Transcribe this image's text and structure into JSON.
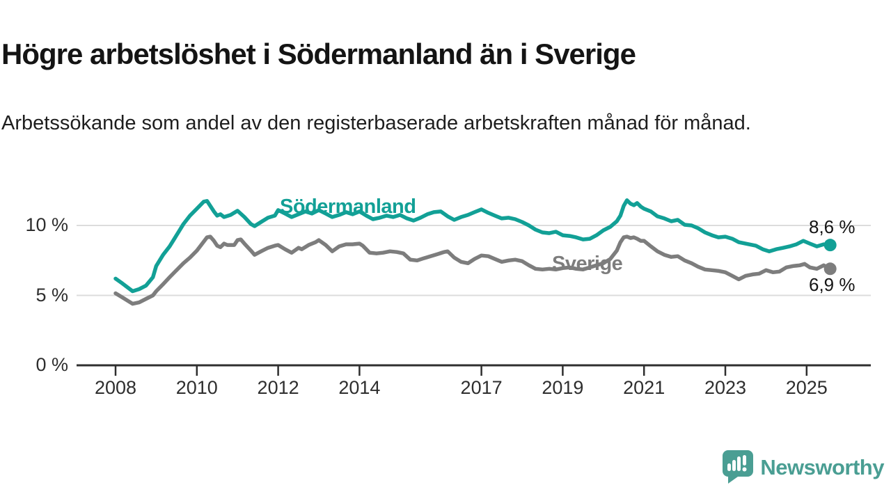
{
  "header": {
    "title": "Högre arbetslöshet i Södermanland än i Sverige",
    "subtitle": "Arbetssökande som andel av den registerbaserade arbetskraften månad för månad."
  },
  "branding": {
    "logo_text": "Newsworthy",
    "logo_color": "#4a9e93"
  },
  "colors": {
    "teal_line": "#12a096",
    "gray_line": "#7d7d7d",
    "gridline": "#dcdcdc",
    "axis": "#2e2e2e",
    "text": "#2e2e2e"
  },
  "chart_data": {
    "type": "line",
    "title": "Högre arbetslöshet i Södermanland än i Sverige",
    "subtitle": "Arbetssökande som andel av den registerbaserade arbetskraften månad för månad.",
    "xlabel": "",
    "ylabel": "",
    "grid": "horizontal",
    "legend_position": "inline-labels",
    "x_axis": {
      "unit": "year",
      "range": [
        2007.9,
        2026.5
      ],
      "ticks": [
        2008,
        2010,
        2012,
        2014,
        2017,
        2019,
        2021,
        2023,
        2025
      ]
    },
    "y_axis": {
      "unit": "percent",
      "range": [
        0,
        12.5
      ],
      "ticks": [
        0,
        5,
        10
      ],
      "tick_labels": [
        "0 %",
        "5 %",
        "10 %"
      ]
    },
    "series": [
      {
        "name": "Sverige",
        "color": "#7d7d7d",
        "end_label": "6,9 %",
        "end_value": 6.9,
        "points": [
          [
            2008.0,
            5.15
          ],
          [
            2008.17,
            4.85
          ],
          [
            2008.42,
            4.4
          ],
          [
            2008.58,
            4.5
          ],
          [
            2008.75,
            4.75
          ],
          [
            2008.92,
            5.0
          ],
          [
            2009.0,
            5.3
          ],
          [
            2009.17,
            5.8
          ],
          [
            2009.33,
            6.3
          ],
          [
            2009.5,
            6.8
          ],
          [
            2009.67,
            7.3
          ],
          [
            2009.83,
            7.7
          ],
          [
            2010.0,
            8.2
          ],
          [
            2010.08,
            8.5
          ],
          [
            2010.25,
            9.15
          ],
          [
            2010.33,
            9.2
          ],
          [
            2010.42,
            8.9
          ],
          [
            2010.5,
            8.55
          ],
          [
            2010.58,
            8.45
          ],
          [
            2010.67,
            8.7
          ],
          [
            2010.75,
            8.6
          ],
          [
            2010.92,
            8.6
          ],
          [
            2011.0,
            8.95
          ],
          [
            2011.08,
            9.0
          ],
          [
            2011.17,
            8.7
          ],
          [
            2011.33,
            8.2
          ],
          [
            2011.42,
            7.9
          ],
          [
            2011.58,
            8.15
          ],
          [
            2011.75,
            8.4
          ],
          [
            2011.92,
            8.55
          ],
          [
            2012.0,
            8.6
          ],
          [
            2012.17,
            8.3
          ],
          [
            2012.33,
            8.05
          ],
          [
            2012.5,
            8.4
          ],
          [
            2012.58,
            8.3
          ],
          [
            2012.75,
            8.6
          ],
          [
            2012.92,
            8.8
          ],
          [
            2013.0,
            8.95
          ],
          [
            2013.17,
            8.6
          ],
          [
            2013.33,
            8.15
          ],
          [
            2013.5,
            8.5
          ],
          [
            2013.67,
            8.65
          ],
          [
            2013.83,
            8.65
          ],
          [
            2014.0,
            8.7
          ],
          [
            2014.08,
            8.55
          ],
          [
            2014.25,
            8.05
          ],
          [
            2014.42,
            8.0
          ],
          [
            2014.58,
            8.05
          ],
          [
            2014.75,
            8.15
          ],
          [
            2014.92,
            8.1
          ],
          [
            2015.08,
            8.0
          ],
          [
            2015.25,
            7.55
          ],
          [
            2015.42,
            7.5
          ],
          [
            2015.58,
            7.65
          ],
          [
            2015.75,
            7.8
          ],
          [
            2015.92,
            7.95
          ],
          [
            2016.08,
            8.1
          ],
          [
            2016.17,
            8.15
          ],
          [
            2016.33,
            7.7
          ],
          [
            2016.5,
            7.4
          ],
          [
            2016.67,
            7.3
          ],
          [
            2016.83,
            7.6
          ],
          [
            2017.0,
            7.85
          ],
          [
            2017.17,
            7.8
          ],
          [
            2017.33,
            7.6
          ],
          [
            2017.5,
            7.4
          ],
          [
            2017.67,
            7.5
          ],
          [
            2017.83,
            7.55
          ],
          [
            2018.0,
            7.45
          ],
          [
            2018.17,
            7.15
          ],
          [
            2018.33,
            6.9
          ],
          [
            2018.5,
            6.85
          ],
          [
            2018.67,
            6.9
          ],
          [
            2018.83,
            6.85
          ],
          [
            2019.0,
            6.95
          ],
          [
            2019.17,
            7.0
          ],
          [
            2019.33,
            6.9
          ],
          [
            2019.5,
            6.85
          ],
          [
            2019.67,
            7.0
          ],
          [
            2019.83,
            7.15
          ],
          [
            2020.0,
            7.3
          ],
          [
            2020.17,
            7.6
          ],
          [
            2020.33,
            8.2
          ],
          [
            2020.42,
            8.8
          ],
          [
            2020.5,
            9.15
          ],
          [
            2020.58,
            9.2
          ],
          [
            2020.67,
            9.1
          ],
          [
            2020.75,
            9.15
          ],
          [
            2020.83,
            9.05
          ],
          [
            2020.92,
            8.9
          ],
          [
            2021.0,
            8.9
          ],
          [
            2021.17,
            8.5
          ],
          [
            2021.33,
            8.15
          ],
          [
            2021.5,
            7.9
          ],
          [
            2021.67,
            7.75
          ],
          [
            2021.83,
            7.8
          ],
          [
            2022.0,
            7.5
          ],
          [
            2022.17,
            7.3
          ],
          [
            2022.33,
            7.05
          ],
          [
            2022.5,
            6.85
          ],
          [
            2022.67,
            6.8
          ],
          [
            2022.83,
            6.75
          ],
          [
            2023.0,
            6.65
          ],
          [
            2023.17,
            6.4
          ],
          [
            2023.33,
            6.15
          ],
          [
            2023.5,
            6.4
          ],
          [
            2023.67,
            6.5
          ],
          [
            2023.83,
            6.55
          ],
          [
            2024.0,
            6.8
          ],
          [
            2024.17,
            6.65
          ],
          [
            2024.33,
            6.7
          ],
          [
            2024.5,
            7.0
          ],
          [
            2024.67,
            7.1
          ],
          [
            2024.83,
            7.15
          ],
          [
            2024.95,
            7.25
          ],
          [
            2025.08,
            7.0
          ],
          [
            2025.25,
            6.9
          ],
          [
            2025.42,
            7.15
          ],
          [
            2025.58,
            6.9
          ]
        ]
      },
      {
        "name": "Södermanland",
        "color": "#12a096",
        "end_label": "8,6 %",
        "end_value": 8.6,
        "points": [
          [
            2008.0,
            6.2
          ],
          [
            2008.17,
            5.85
          ],
          [
            2008.42,
            5.3
          ],
          [
            2008.58,
            5.45
          ],
          [
            2008.75,
            5.7
          ],
          [
            2008.92,
            6.3
          ],
          [
            2009.0,
            7.1
          ],
          [
            2009.17,
            7.9
          ],
          [
            2009.33,
            8.5
          ],
          [
            2009.5,
            9.3
          ],
          [
            2009.67,
            10.1
          ],
          [
            2009.83,
            10.7
          ],
          [
            2010.0,
            11.2
          ],
          [
            2010.17,
            11.7
          ],
          [
            2010.25,
            11.75
          ],
          [
            2010.42,
            11.0
          ],
          [
            2010.5,
            10.7
          ],
          [
            2010.58,
            10.8
          ],
          [
            2010.67,
            10.6
          ],
          [
            2010.83,
            10.75
          ],
          [
            2011.0,
            11.05
          ],
          [
            2011.17,
            10.6
          ],
          [
            2011.33,
            10.1
          ],
          [
            2011.42,
            9.95
          ],
          [
            2011.58,
            10.25
          ],
          [
            2011.75,
            10.55
          ],
          [
            2011.92,
            10.7
          ],
          [
            2012.0,
            11.1
          ],
          [
            2012.17,
            10.85
          ],
          [
            2012.33,
            10.6
          ],
          [
            2012.5,
            10.8
          ],
          [
            2012.67,
            11.0
          ],
          [
            2012.83,
            10.85
          ],
          [
            2013.0,
            11.1
          ],
          [
            2013.17,
            10.85
          ],
          [
            2013.33,
            10.6
          ],
          [
            2013.5,
            10.75
          ],
          [
            2013.67,
            10.95
          ],
          [
            2013.83,
            10.8
          ],
          [
            2014.0,
            11.0
          ],
          [
            2014.17,
            10.7
          ],
          [
            2014.33,
            10.45
          ],
          [
            2014.5,
            10.55
          ],
          [
            2014.67,
            10.7
          ],
          [
            2014.83,
            10.6
          ],
          [
            2015.0,
            10.75
          ],
          [
            2015.17,
            10.5
          ],
          [
            2015.33,
            10.35
          ],
          [
            2015.5,
            10.55
          ],
          [
            2015.67,
            10.8
          ],
          [
            2015.83,
            10.95
          ],
          [
            2016.0,
            11.0
          ],
          [
            2016.17,
            10.65
          ],
          [
            2016.33,
            10.4
          ],
          [
            2016.5,
            10.6
          ],
          [
            2016.67,
            10.75
          ],
          [
            2016.83,
            10.95
          ],
          [
            2017.0,
            11.15
          ],
          [
            2017.17,
            10.9
          ],
          [
            2017.33,
            10.7
          ],
          [
            2017.5,
            10.5
          ],
          [
            2017.67,
            10.55
          ],
          [
            2017.83,
            10.45
          ],
          [
            2018.0,
            10.25
          ],
          [
            2018.17,
            10.0
          ],
          [
            2018.33,
            9.7
          ],
          [
            2018.5,
            9.5
          ],
          [
            2018.67,
            9.45
          ],
          [
            2018.83,
            9.55
          ],
          [
            2019.0,
            9.3
          ],
          [
            2019.17,
            9.25
          ],
          [
            2019.33,
            9.15
          ],
          [
            2019.5,
            9.0
          ],
          [
            2019.67,
            9.05
          ],
          [
            2019.83,
            9.3
          ],
          [
            2020.0,
            9.65
          ],
          [
            2020.17,
            9.9
          ],
          [
            2020.33,
            10.3
          ],
          [
            2020.42,
            10.7
          ],
          [
            2020.5,
            11.4
          ],
          [
            2020.58,
            11.8
          ],
          [
            2020.67,
            11.55
          ],
          [
            2020.75,
            11.45
          ],
          [
            2020.83,
            11.6
          ],
          [
            2020.92,
            11.35
          ],
          [
            2021.0,
            11.2
          ],
          [
            2021.17,
            11.0
          ],
          [
            2021.33,
            10.65
          ],
          [
            2021.5,
            10.5
          ],
          [
            2021.67,
            10.3
          ],
          [
            2021.83,
            10.4
          ],
          [
            2022.0,
            10.05
          ],
          [
            2022.17,
            10.0
          ],
          [
            2022.33,
            9.8
          ],
          [
            2022.5,
            9.5
          ],
          [
            2022.67,
            9.3
          ],
          [
            2022.83,
            9.15
          ],
          [
            2023.0,
            9.2
          ],
          [
            2023.17,
            9.05
          ],
          [
            2023.33,
            8.8
          ],
          [
            2023.58,
            8.65
          ],
          [
            2023.75,
            8.55
          ],
          [
            2023.92,
            8.3
          ],
          [
            2024.08,
            8.15
          ],
          [
            2024.25,
            8.3
          ],
          [
            2024.42,
            8.4
          ],
          [
            2024.58,
            8.5
          ],
          [
            2024.75,
            8.65
          ],
          [
            2024.92,
            8.9
          ],
          [
            2025.08,
            8.7
          ],
          [
            2025.25,
            8.5
          ],
          [
            2025.42,
            8.65
          ],
          [
            2025.58,
            8.6
          ]
        ]
      }
    ]
  }
}
